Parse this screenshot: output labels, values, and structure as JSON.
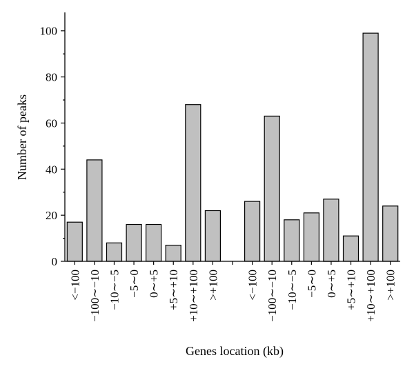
{
  "chart_data": {
    "type": "bar",
    "categories": [
      "<−100",
      "−100∼−10",
      "−10∼−5",
      "−5∼0",
      "0∼+5",
      "+5∼+10",
      "+10∼+100",
      ">+100",
      "",
      "<−100",
      "−100∼−10",
      "−10∼−5",
      "−5∼0",
      "0∼+5",
      "+5∼+10",
      "+10∼+100",
      ">+100"
    ],
    "values": [
      17,
      44,
      8,
      16,
      16,
      7,
      68,
      22,
      null,
      26,
      63,
      18,
      21,
      27,
      11,
      99,
      24
    ],
    "xlabel": "Genes location (kb)",
    "ylabel": "Number of peaks",
    "ylim": [
      0,
      108
    ],
    "yticks": [
      0,
      20,
      40,
      60,
      80,
      100
    ],
    "colors": {
      "bar_fill": "#c0c0c0",
      "bar_stroke": "#000000"
    },
    "grid": false
  }
}
